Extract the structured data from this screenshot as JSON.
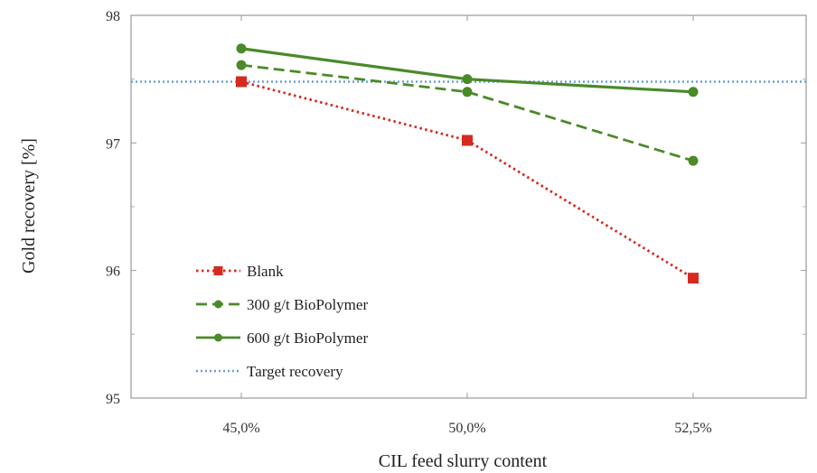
{
  "chart_data": {
    "type": "line",
    "xlabel": "CIL feed slurry content",
    "ylabel": "Gold recovery [%]",
    "categories": [
      "45,0%",
      "50,0%",
      "52,5%"
    ],
    "ylim": [
      95,
      98
    ],
    "yticks": [
      "95",
      "96",
      "97",
      "98"
    ],
    "grid": false,
    "legend_position": "bottom-left",
    "series": [
      {
        "name": "Blank",
        "values": [
          97.48,
          97.02,
          95.94
        ],
        "color": "#d62a20",
        "dash": "dotted",
        "marker": "square"
      },
      {
        "name": "300 g/t BioPolymer",
        "values": [
          97.61,
          97.4,
          96.86
        ],
        "color": "#4a8a28",
        "dash": "dashed",
        "marker": "circle"
      },
      {
        "name": "600 g/t BioPolymer",
        "values": [
          97.74,
          97.5,
          97.4
        ],
        "color": "#4a8a28",
        "dash": "solid",
        "marker": "circle"
      }
    ],
    "reference_lines": [
      {
        "name": "Target recovery",
        "value": 97.48,
        "color": "#6f9fd8",
        "dash": "dotted"
      }
    ]
  }
}
